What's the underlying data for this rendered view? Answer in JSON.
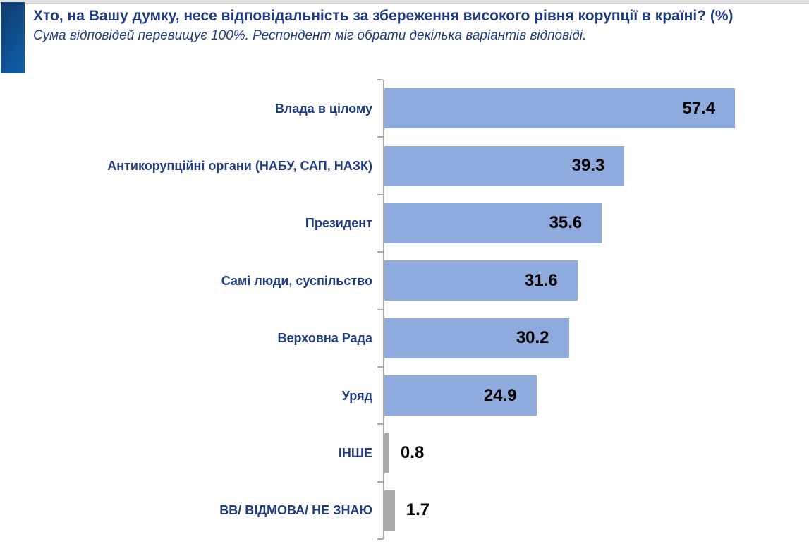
{
  "header": {
    "title": "Хто, на Вашу думку, несе відповідальність за збереження високого рівня корупції в країні? (%)",
    "subtitle": "Сума відповідей перевищує 100%. Респондент міг обрати декілька варіантів відповіді."
  },
  "chart_data": {
    "type": "bar",
    "orientation": "horizontal",
    "title": "Хто, на Вашу думку, несе відповідальність за збереження високого рівня корупції в країні? (%)",
    "subtitle": "Сума відповідей перевищує 100%. Респондент міг обрати декілька варіантів відповіді.",
    "categories": [
      "Влада в цілому",
      "Антикорупційні органи (НАБУ, САП, НАЗК)",
      "Президент",
      "Самі люди, суспільство",
      "Верховна Рада",
      "Уряд",
      "ІНШЕ",
      "ВВ/ ВІДМОВА/ НЕ ЗНАЮ"
    ],
    "values": [
      57.4,
      39.3,
      35.6,
      31.6,
      30.2,
      24.9,
      0.8,
      1.7
    ],
    "value_labels": [
      "57.4",
      "39.3",
      "35.6",
      "31.6",
      "30.2",
      "24.9",
      "0.8",
      "1.7"
    ],
    "bar_colors": [
      "#8faadc",
      "#8faadc",
      "#8faadc",
      "#8faadc",
      "#8faadc",
      "#8faadc",
      "#ababab",
      "#ababab"
    ],
    "xlim": [
      0,
      66
    ],
    "grid": false,
    "legend": false,
    "unit": "%"
  },
  "colors": {
    "accent_bar": "#8faadc",
    "muted_bar": "#ababab",
    "heading_text": "#1f3c85",
    "value_text": "#000000",
    "axis_line": "#a9a9a9"
  }
}
